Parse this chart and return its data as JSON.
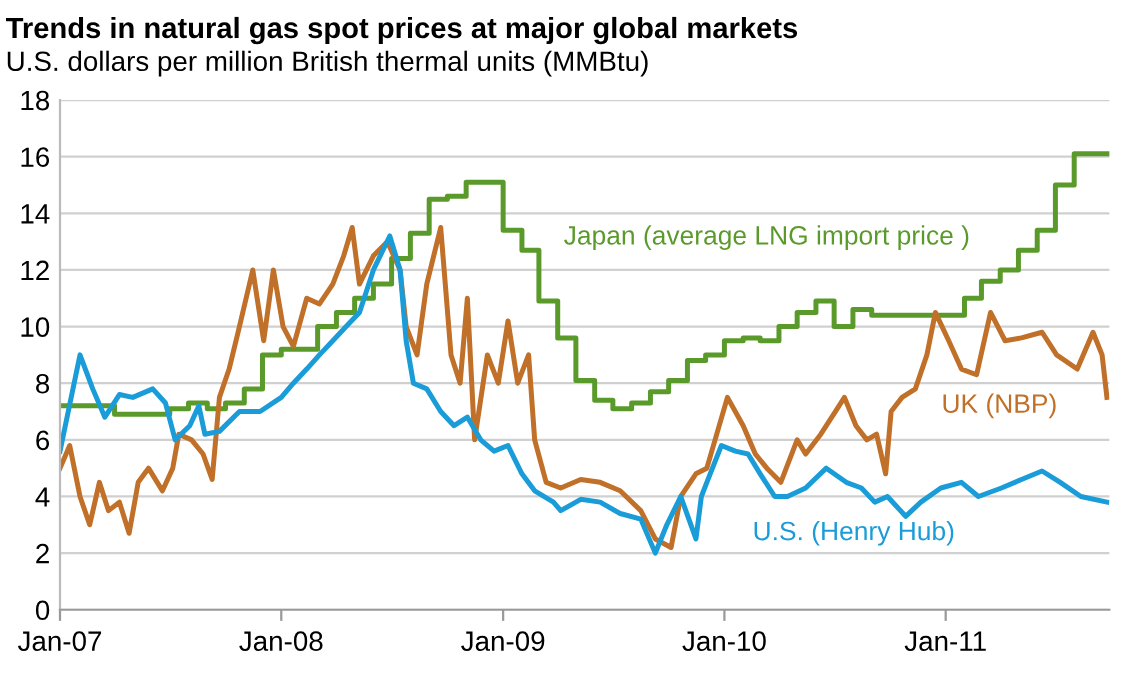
{
  "chart_data": {
    "type": "line",
    "title": "Trends in natural gas spot prices at major global markets",
    "subtitle": "U.S. dollars per million British thermal units (MMBtu)",
    "series": [
      {
        "name": "Japan (average LNG import price )",
        "type": "step",
        "color": "#5a9a2a",
        "x": [
          "2007-01-01",
          "2007-04-01",
          "2007-07-01",
          "2007-08-01",
          "2007-09-01",
          "2007-10-01",
          "2007-11-01",
          "2007-12-01",
          "2008-01-01",
          "2008-03-01",
          "2008-04-01",
          "2008-05-01",
          "2008-06-01",
          "2008-07-01",
          "2008-08-01",
          "2008-09-01",
          "2008-10-01",
          "2008-11-01",
          "2009-01-01",
          "2009-02-01",
          "2009-03-01",
          "2009-04-01",
          "2009-05-01",
          "2009-06-01",
          "2009-07-01",
          "2009-08-01",
          "2009-09-01",
          "2009-10-01",
          "2009-11-01",
          "2009-12-01",
          "2010-01-01",
          "2010-02-01",
          "2010-03-01",
          "2010-04-01",
          "2010-05-01",
          "2010-06-01",
          "2010-07-01",
          "2010-08-01",
          "2010-09-01",
          "2011-01-01",
          "2011-02-01",
          "2011-03-01",
          "2011-04-01",
          "2011-05-01",
          "2011-06-01",
          "2011-07-01",
          "2011-08-01",
          "2011-09-28"
        ],
        "values": [
          7.2,
          6.9,
          7.1,
          7.3,
          7.1,
          7.3,
          7.8,
          9.0,
          9.2,
          10.0,
          10.5,
          11.0,
          11.5,
          12.4,
          13.3,
          14.5,
          14.6,
          15.1,
          13.4,
          12.7,
          10.9,
          9.6,
          8.1,
          7.4,
          7.1,
          7.3,
          7.7,
          8.1,
          8.8,
          9.0,
          9.5,
          9.6,
          9.5,
          10.0,
          10.5,
          10.9,
          10.0,
          10.6,
          10.4,
          10.4,
          11.0,
          11.6,
          12.0,
          12.7,
          13.4,
          15.0,
          16.1,
          16.1
        ]
      },
      {
        "name": "UK (NBP)",
        "color": "#c07028",
        "x": [
          "2007-01-01",
          "2007-01-17",
          "2007-02-03",
          "2007-02-19",
          "2007-03-07",
          "2007-03-22",
          "2007-04-09",
          "2007-04-25",
          "2007-05-10",
          "2007-05-27",
          "2007-06-19",
          "2007-07-06",
          "2007-07-16",
          "2007-08-06",
          "2007-08-25",
          "2007-09-09",
          "2007-09-21",
          "2007-10-07",
          "2007-10-24",
          "2007-11-15",
          "2007-12-03",
          "2007-12-19",
          "2008-01-04",
          "2008-01-21",
          "2008-02-12",
          "2008-03-04",
          "2008-03-26",
          "2008-04-13",
          "2008-04-27",
          "2008-05-09",
          "2008-06-01",
          "2008-06-24",
          "2008-07-15",
          "2008-07-25",
          "2008-08-12",
          "2008-08-28",
          "2008-09-20",
          "2008-10-07",
          "2008-10-22",
          "2008-11-03",
          "2008-11-15",
          "2008-12-06",
          "2008-12-24",
          "2009-01-09",
          "2009-01-25",
          "2009-02-12",
          "2009-02-22",
          "2009-03-13",
          "2009-04-06",
          "2009-05-09",
          "2009-06-10",
          "2009-07-13",
          "2009-08-16",
          "2009-09-09",
          "2009-10-05",
          "2009-10-21",
          "2009-11-15",
          "2009-12-03",
          "2010-01-06",
          "2010-02-01",
          "2010-02-21",
          "2010-03-12",
          "2010-04-04",
          "2010-05-01",
          "2010-05-15",
          "2010-06-09",
          "2010-07-03",
          "2010-07-18",
          "2010-08-06",
          "2010-08-24",
          "2010-09-09",
          "2010-09-24",
          "2010-10-03",
          "2010-10-21",
          "2010-11-12",
          "2010-12-01",
          "2010-12-15",
          "2011-01-06",
          "2011-01-27",
          "2011-02-21",
          "2011-03-16",
          "2011-04-09",
          "2011-05-06",
          "2011-06-09",
          "2011-07-03",
          "2011-08-06",
          "2011-09-01",
          "2011-09-16",
          "2011-09-24"
        ],
        "values": [
          5.0,
          5.8,
          4.0,
          3.0,
          4.5,
          3.5,
          3.8,
          2.7,
          4.5,
          5.0,
          4.2,
          5.0,
          6.2,
          6.0,
          5.5,
          4.6,
          7.5,
          8.5,
          10.0,
          12.0,
          9.5,
          12.0,
          10.0,
          9.3,
          11.0,
          10.8,
          11.5,
          12.5,
          13.5,
          11.5,
          12.5,
          13.0,
          12.0,
          10.0,
          9.0,
          11.5,
          13.5,
          9.0,
          8.0,
          11.0,
          6.0,
          9.0,
          8.0,
          10.2,
          8.0,
          9.0,
          6.0,
          4.5,
          4.3,
          4.6,
          4.5,
          4.2,
          3.5,
          2.5,
          2.2,
          4.0,
          4.8,
          5.0,
          7.5,
          6.5,
          5.5,
          5.0,
          4.5,
          6.0,
          5.5,
          6.2,
          7.0,
          7.5,
          6.5,
          6.0,
          6.2,
          4.8,
          7.0,
          7.5,
          7.8,
          9.0,
          10.5,
          9.5,
          8.5,
          8.3,
          10.5,
          9.5,
          9.6,
          9.8,
          9.0,
          8.5,
          9.8,
          9.0,
          7.5
        ]
      },
      {
        "name": "U.S. (Henry Hub)",
        "color": "#1a9cd8",
        "x": [
          "2007-01-01",
          "2007-02-03",
          "2007-02-24",
          "2007-03-16",
          "2007-04-09",
          "2007-05-01",
          "2007-06-03",
          "2007-06-24",
          "2007-07-10",
          "2007-08-03",
          "2007-08-18",
          "2007-08-28",
          "2007-09-21",
          "2007-10-24",
          "2007-11-27",
          "2008-01-01",
          "2008-01-21",
          "2008-02-12",
          "2008-03-04",
          "2008-03-26",
          "2008-04-17",
          "2008-05-09",
          "2008-06-01",
          "2008-06-28",
          "2008-07-15",
          "2008-07-25",
          "2008-08-06",
          "2008-08-28",
          "2008-09-20",
          "2008-10-12",
          "2008-11-03",
          "2008-11-25",
          "2008-12-17",
          "2009-01-09",
          "2009-02-01",
          "2009-02-22",
          "2009-03-25",
          "2009-04-06",
          "2009-05-09",
          "2009-06-10",
          "2009-07-13",
          "2009-08-16",
          "2009-09-09",
          "2009-09-28",
          "2009-10-21",
          "2009-11-15",
          "2009-11-24",
          "2009-12-03",
          "2009-12-27",
          "2010-01-19",
          "2010-02-09",
          "2010-03-01",
          "2010-03-25",
          "2010-04-15",
          "2010-05-15",
          "2010-06-18",
          "2010-07-21",
          "2010-08-15",
          "2010-09-06",
          "2010-09-27",
          "2010-10-27",
          "2010-11-21",
          "2010-12-24",
          "2011-01-27",
          "2011-02-24",
          "2011-04-03",
          "2011-05-06",
          "2011-06-09",
          "2011-07-09",
          "2011-08-12",
          "2011-09-24"
        ],
        "values": [
          5.6,
          9.0,
          7.8,
          6.8,
          7.6,
          7.5,
          7.8,
          7.3,
          6.0,
          6.5,
          7.2,
          6.2,
          6.3,
          7.0,
          7.0,
          7.5,
          8.0,
          8.5,
          9.0,
          9.5,
          10.0,
          10.5,
          12.0,
          13.2,
          12.0,
          9.5,
          8.0,
          7.8,
          7.0,
          6.5,
          6.8,
          6.0,
          5.6,
          5.8,
          4.8,
          4.2,
          3.8,
          3.5,
          3.9,
          3.8,
          3.4,
          3.2,
          2.0,
          3.0,
          4.0,
          2.5,
          4.0,
          4.5,
          5.8,
          5.6,
          5.5,
          4.8,
          4.0,
          4.0,
          4.3,
          5.0,
          4.5,
          4.3,
          3.8,
          4.0,
          3.3,
          3.8,
          4.3,
          4.5,
          4.0,
          4.3,
          4.6,
          4.9,
          4.5,
          4.0,
          3.8
        ]
      }
    ],
    "xlim": [
      "2007-01-01",
      "2011-09-28"
    ],
    "xticks": [
      {
        "value": "2007-01-01",
        "label": "Jan-07"
      },
      {
        "value": "2008-01-01",
        "label": "Jan-08"
      },
      {
        "value": "2009-01-01",
        "label": "Jan-09"
      },
      {
        "value": "2010-01-01",
        "label": "Jan-10"
      },
      {
        "value": "2011-01-01",
        "label": "Jan-11"
      }
    ],
    "ylim": [
      0,
      18
    ],
    "yticks": [
      0,
      2,
      4,
      6,
      8,
      10,
      12,
      14,
      16,
      18
    ],
    "grid": "y",
    "legend": false,
    "marker": "none",
    "line_style": "solid"
  }
}
